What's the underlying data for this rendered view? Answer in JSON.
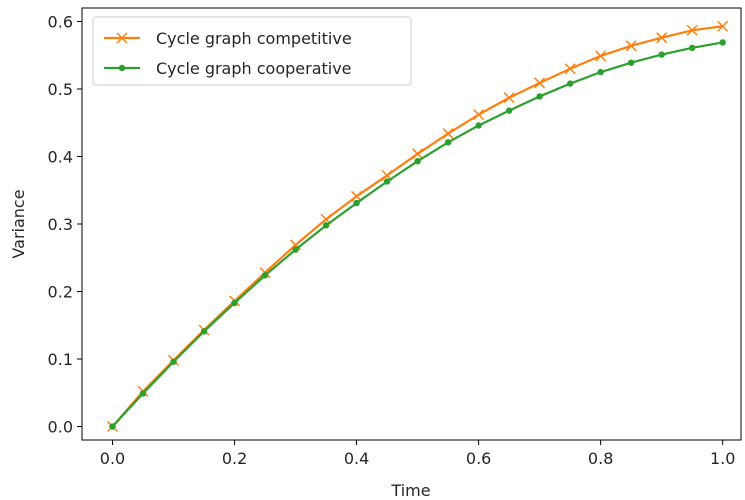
{
  "chart_data": {
    "type": "line",
    "title": "",
    "xlabel": "Time",
    "ylabel": "Variance",
    "xlim": [
      -0.05,
      1.03
    ],
    "ylim": [
      -0.02,
      0.62
    ],
    "xticks": [
      0.0,
      0.2,
      0.4,
      0.6,
      0.8,
      1.0
    ],
    "xtick_labels": [
      "0.0",
      "0.2",
      "0.4",
      "0.6",
      "0.8",
      "1.0"
    ],
    "yticks": [
      0.0,
      0.1,
      0.2,
      0.3,
      0.4,
      0.5,
      0.6
    ],
    "ytick_labels": [
      "0.0",
      "0.1",
      "0.2",
      "0.3",
      "0.4",
      "0.5",
      "0.6"
    ],
    "grid": false,
    "legend_position": "top-left",
    "x": [
      0.0,
      0.05,
      0.1,
      0.15,
      0.2,
      0.25,
      0.3,
      0.35,
      0.4,
      0.45,
      0.5,
      0.55,
      0.6,
      0.65,
      0.7,
      0.75,
      0.8,
      0.85,
      0.9,
      0.95,
      1.0
    ],
    "series": [
      {
        "name": "Cycle graph competitive",
        "color": "#ff7f0e",
        "marker": "x",
        "values": [
          0.0,
          0.052,
          0.098,
          0.143,
          0.186,
          0.228,
          0.269,
          0.307,
          0.341,
          0.372,
          0.404,
          0.434,
          0.462,
          0.487,
          0.509,
          0.53,
          0.549,
          0.564,
          0.576,
          0.587,
          0.593
        ]
      },
      {
        "name": "Cycle graph cooperative",
        "color": "#2ca02c",
        "marker": "dot",
        "values": [
          0.0,
          0.049,
          0.096,
          0.141,
          0.183,
          0.224,
          0.262,
          0.298,
          0.331,
          0.363,
          0.393,
          0.421,
          0.446,
          0.468,
          0.489,
          0.508,
          0.525,
          0.539,
          0.551,
          0.561,
          0.569
        ]
      }
    ]
  }
}
